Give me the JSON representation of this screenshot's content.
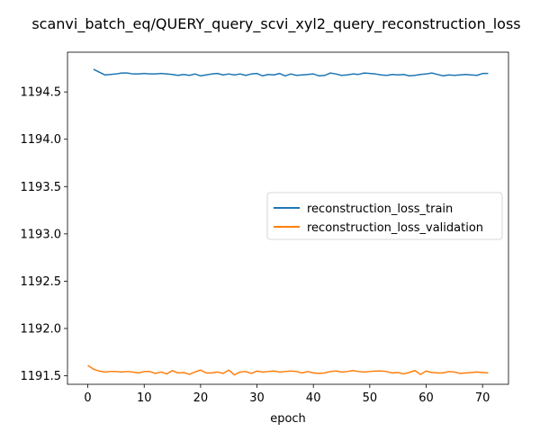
{
  "chart_data": {
    "type": "line",
    "title": "scanvi_batch_eq/QUERY_query_scvi_xyl2_query_reconstruction_loss",
    "xlabel": "epoch",
    "ylabel": "",
    "xlim": [
      -3.6,
      74.6
    ],
    "ylim": [
      1191.41,
      1194.92
    ],
    "xticks": [
      0,
      10,
      20,
      30,
      40,
      50,
      60,
      70
    ],
    "yticks": [
      1191.5,
      1192.0,
      1192.5,
      1193.0,
      1193.5,
      1194.0,
      1194.5
    ],
    "ytick_labels": [
      "1191.5",
      "1192.0",
      "1192.5",
      "1193.0",
      "1193.5",
      "1194.0",
      "1194.5"
    ],
    "grid": false,
    "legend_position": "center-right",
    "series": [
      {
        "name": "reconstruction_loss_train",
        "color": "#1f77b4",
        "x": [
          1,
          2,
          3,
          4,
          5,
          6,
          7,
          8,
          9,
          10,
          11,
          12,
          13,
          14,
          15,
          16,
          17,
          18,
          19,
          20,
          21,
          22,
          23,
          24,
          25,
          26,
          27,
          28,
          29,
          30,
          31,
          32,
          33,
          34,
          35,
          36,
          37,
          38,
          39,
          40,
          41,
          42,
          43,
          44,
          45,
          46,
          47,
          48,
          49,
          50,
          51,
          52,
          53,
          54,
          55,
          56,
          57,
          58,
          59,
          60,
          61,
          62,
          63,
          64,
          65,
          66,
          67,
          68,
          69,
          70,
          71
        ],
        "y": [
          1194.74,
          1194.71,
          1194.68,
          1194.685,
          1194.69,
          1194.7,
          1194.7,
          1194.69,
          1194.69,
          1194.695,
          1194.69,
          1194.69,
          1194.695,
          1194.69,
          1194.685,
          1194.675,
          1194.685,
          1194.675,
          1194.69,
          1194.67,
          1194.68,
          1194.69,
          1194.695,
          1194.68,
          1194.69,
          1194.68,
          1194.69,
          1194.675,
          1194.69,
          1194.695,
          1194.67,
          1194.685,
          1194.68,
          1194.695,
          1194.67,
          1194.69,
          1194.675,
          1194.68,
          1194.685,
          1194.69,
          1194.67,
          1194.675,
          1194.7,
          1194.69,
          1194.675,
          1194.68,
          1194.69,
          1194.685,
          1194.7,
          1194.695,
          1194.69,
          1194.68,
          1194.675,
          1194.685,
          1194.68,
          1194.685,
          1194.67,
          1194.675,
          1194.685,
          1194.69,
          1194.7,
          1194.685,
          1194.67,
          1194.68,
          1194.675,
          1194.68,
          1194.685,
          1194.68,
          1194.675,
          1194.695,
          1194.695
        ]
      },
      {
        "name": "reconstruction_loss_validation",
        "color": "#ff7f0e",
        "x": [
          0,
          1,
          2,
          3,
          4,
          5,
          6,
          7,
          8,
          9,
          10,
          11,
          12,
          13,
          14,
          15,
          16,
          17,
          18,
          19,
          20,
          21,
          22,
          23,
          24,
          25,
          26,
          27,
          28,
          29,
          30,
          31,
          32,
          33,
          34,
          35,
          36,
          37,
          38,
          39,
          40,
          41,
          42,
          43,
          44,
          45,
          46,
          47,
          48,
          49,
          50,
          51,
          52,
          53,
          54,
          55,
          56,
          57,
          58,
          59,
          60,
          61,
          62,
          63,
          64,
          65,
          66,
          67,
          68,
          69,
          70,
          71
        ],
        "y": [
          1191.61,
          1191.57,
          1191.55,
          1191.54,
          1191.545,
          1191.545,
          1191.54,
          1191.545,
          1191.54,
          1191.53,
          1191.545,
          1191.545,
          1191.525,
          1191.54,
          1191.52,
          1191.555,
          1191.53,
          1191.535,
          1191.515,
          1191.54,
          1191.56,
          1191.53,
          1191.53,
          1191.54,
          1191.525,
          1191.56,
          1191.51,
          1191.54,
          1191.545,
          1191.525,
          1191.55,
          1191.54,
          1191.545,
          1191.55,
          1191.54,
          1191.545,
          1191.55,
          1191.545,
          1191.53,
          1191.545,
          1191.53,
          1191.525,
          1191.53,
          1191.545,
          1191.55,
          1191.54,
          1191.545,
          1191.555,
          1191.545,
          1191.54,
          1191.545,
          1191.55,
          1191.55,
          1191.545,
          1191.53,
          1191.535,
          1191.52,
          1191.535,
          1191.555,
          1191.515,
          1191.55,
          1191.535,
          1191.53,
          1191.53,
          1191.545,
          1191.54,
          1191.525,
          1191.53,
          1191.535,
          1191.54,
          1191.535,
          1191.53
        ]
      }
    ]
  }
}
